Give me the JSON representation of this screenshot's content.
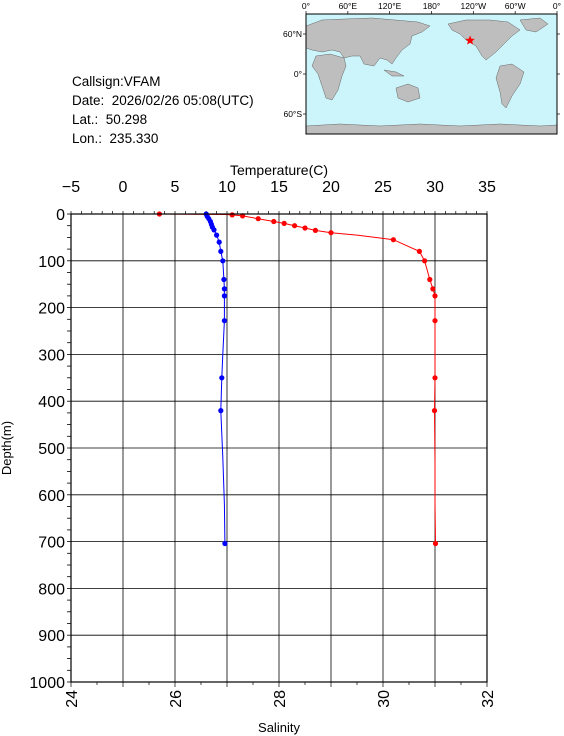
{
  "info": {
    "callsign": "Callsign:VFAM",
    "date": "Date:  2026/02/26 05:08(UTC)",
    "lat_label": "Lat.:",
    "lat_value": "50.298",
    "lon_label": "Lon.:",
    "lon_value": "235.330"
  },
  "map": {
    "lon_labels": [
      "0°",
      "60°E",
      "120°E",
      "180°",
      "120°W",
      "60°W",
      "0°"
    ],
    "lat_labels": [
      "60°N",
      "0°",
      "60°S"
    ],
    "ocean_color": "#ccf5fb",
    "land_color": "#bebebe",
    "marker": {
      "icon": "star-marker-icon",
      "lon": 235.33,
      "lat": 50.298,
      "color": "#ff0000"
    }
  },
  "chart_data": {
    "type": "line",
    "ylabel": "Depth(m)",
    "ylim": [
      0,
      1000
    ],
    "yticks": [
      "0",
      "100",
      "200",
      "300",
      "400",
      "500",
      "600",
      "700",
      "800",
      "900",
      "1000"
    ],
    "y_reversed": true,
    "top_axis": {
      "label": "Temperature(C)",
      "lim": [
        -5,
        35
      ],
      "ticks": [
        "−5",
        "0",
        "5",
        "10",
        "15",
        "20",
        "25",
        "30",
        "35"
      ]
    },
    "bottom_axis": {
      "label": "Salinity",
      "lim": [
        24,
        32
      ],
      "ticks": [
        "24",
        "26",
        "28",
        "30",
        "32"
      ]
    },
    "grid": true,
    "series": [
      {
        "axis": "top",
        "color": "#ff0000",
        "points": [
          [
            3.5,
            0
          ],
          [
            9.8,
            1
          ],
          [
            10.5,
            2
          ],
          [
            11.5,
            4
          ],
          [
            13.0,
            10
          ],
          [
            14.5,
            16
          ],
          [
            15.5,
            20
          ],
          [
            16.5,
            25
          ],
          [
            17.5,
            30
          ],
          [
            18.5,
            35
          ],
          [
            20,
            40
          ],
          [
            22.5,
            45
          ],
          [
            26,
            55
          ],
          [
            28.5,
            80
          ],
          [
            29,
            100
          ],
          [
            29.5,
            140
          ],
          [
            29.8,
            160
          ],
          [
            30,
            175
          ],
          [
            30.0,
            228
          ],
          [
            30.0,
            350
          ],
          [
            29.95,
            420
          ],
          [
            30.0,
            530
          ],
          [
            30.0,
            620
          ],
          [
            30.05,
            704
          ]
        ],
        "markers": [
          [
            3.5,
            0
          ],
          [
            10.5,
            2
          ],
          [
            11.5,
            4
          ],
          [
            13.0,
            10
          ],
          [
            14.5,
            16
          ],
          [
            15.5,
            20
          ],
          [
            16.5,
            25
          ],
          [
            17.5,
            30
          ],
          [
            18.5,
            35
          ],
          [
            20,
            40
          ],
          [
            26,
            55
          ],
          [
            28.5,
            80
          ],
          [
            29,
            100
          ],
          [
            29.5,
            140
          ],
          [
            29.8,
            160
          ],
          [
            30,
            175
          ],
          [
            30.0,
            228
          ],
          [
            30.0,
            350
          ],
          [
            29.95,
            420
          ],
          [
            30.05,
            704
          ]
        ]
      },
      {
        "axis": "bottom",
        "color": "#0000ff",
        "points": [
          [
            26.6,
            0
          ],
          [
            26.62,
            5
          ],
          [
            26.65,
            10
          ],
          [
            26.68,
            16
          ],
          [
            26.7,
            22
          ],
          [
            26.72,
            28
          ],
          [
            26.75,
            34
          ],
          [
            26.8,
            45
          ],
          [
            26.85,
            60
          ],
          [
            26.88,
            80
          ],
          [
            26.92,
            100
          ],
          [
            26.94,
            140
          ],
          [
            26.95,
            160
          ],
          [
            26.95,
            175
          ],
          [
            26.95,
            228
          ],
          [
            26.92,
            300
          ],
          [
            26.9,
            350
          ],
          [
            26.88,
            420
          ],
          [
            26.92,
            520
          ],
          [
            26.95,
            620
          ],
          [
            26.96,
            704
          ]
        ],
        "markers": [
          [
            26.6,
            0
          ],
          [
            26.62,
            5
          ],
          [
            26.65,
            10
          ],
          [
            26.68,
            16
          ],
          [
            26.7,
            22
          ],
          [
            26.72,
            28
          ],
          [
            26.75,
            34
          ],
          [
            26.8,
            45
          ],
          [
            26.85,
            60
          ],
          [
            26.88,
            80
          ],
          [
            26.92,
            100
          ],
          [
            26.94,
            140
          ],
          [
            26.95,
            160
          ],
          [
            26.95,
            175
          ],
          [
            26.95,
            228
          ],
          [
            26.9,
            350
          ],
          [
            26.88,
            420
          ],
          [
            26.96,
            704
          ]
        ]
      }
    ]
  }
}
